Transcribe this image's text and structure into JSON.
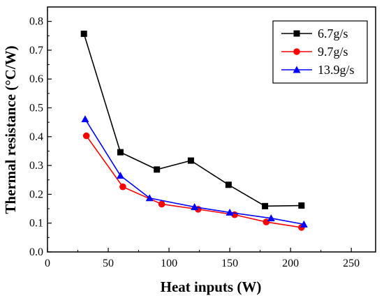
{
  "chart_data": {
    "type": "line",
    "xlabel": "Heat inputs (W)",
    "ylabel": "Thermal resistance (°C/W)",
    "xlim": [
      0,
      270
    ],
    "ylim": [
      0,
      0.85
    ],
    "xticks": [
      0,
      50,
      100,
      150,
      200,
      250
    ],
    "yticks": [
      0.0,
      0.1,
      0.2,
      0.3,
      0.4,
      0.5,
      0.6,
      0.7,
      0.8
    ],
    "xtick_labels": [
      "0",
      "50",
      "100",
      "150",
      "200",
      "250"
    ],
    "ytick_labels": [
      "0.0",
      "0.1",
      "0.2",
      "0.3",
      "0.4",
      "0.5",
      "0.6",
      "0.7",
      "0.8"
    ],
    "grid": false,
    "legend_position": "top-right",
    "series": [
      {
        "name": "6.7g/s",
        "color": "#000000",
        "marker": "square",
        "x": [
          30,
          60,
          90,
          118,
          149,
          179,
          209
        ],
        "y": [
          0.757,
          0.346,
          0.286,
          0.317,
          0.233,
          0.159,
          0.161
        ]
      },
      {
        "name": "9.7g/s",
        "color": "#ff0000",
        "marker": "circle",
        "x": [
          32,
          62,
          94,
          124,
          154,
          180,
          209
        ],
        "y": [
          0.403,
          0.226,
          0.166,
          0.148,
          0.129,
          0.104,
          0.085
        ]
      },
      {
        "name": "13.9g/s",
        "color": "#0000ff",
        "marker": "triangle",
        "x": [
          31,
          60,
          84,
          121,
          150,
          184,
          211
        ],
        "y": [
          0.461,
          0.265,
          0.187,
          0.156,
          0.137,
          0.117,
          0.096
        ]
      }
    ]
  }
}
